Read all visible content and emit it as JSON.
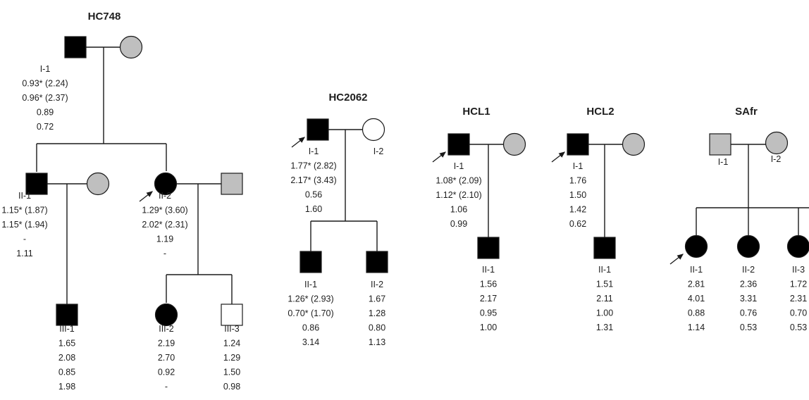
{
  "colors": {
    "affected": "#000000",
    "unknown": "#bfbfbf",
    "unaffected": "#ffffff",
    "line": "#1a1a1a"
  },
  "symbol_legend": {
    "square": "male",
    "circle": "female",
    "filled-black": "affected",
    "filled-grey": "unknown status",
    "open": "unaffected",
    "arrow": "proband"
  },
  "pedigrees": [
    {
      "id": "HC748",
      "title": "HC748",
      "members": [
        {
          "id": "I-1",
          "label": "I-1",
          "sex": "male",
          "status": "affected",
          "values": [
            "0.93* (2.24)",
            "0.96* (2.37)",
            "0.89",
            "0.72"
          ]
        },
        {
          "id": "I-2",
          "label": "",
          "sex": "female",
          "status": "unknown",
          "values": []
        },
        {
          "id": "II-1",
          "label": "II-1",
          "sex": "male",
          "status": "affected",
          "values": [
            "1.15* (1.87)",
            "1.15* (1.94)",
            "-",
            "1.11"
          ]
        },
        {
          "id": "II-1s",
          "label": "",
          "sex": "female",
          "status": "unknown",
          "values": []
        },
        {
          "id": "II-2",
          "label": "II-2",
          "sex": "female",
          "status": "affected",
          "proband": true,
          "values": [
            "1.29* (3.60)",
            "2.02* (2.31)",
            "1.19",
            "-"
          ]
        },
        {
          "id": "II-2s",
          "label": "",
          "sex": "male",
          "status": "unknown",
          "values": []
        },
        {
          "id": "III-1",
          "label": "III-1",
          "sex": "male",
          "status": "affected",
          "values": [
            "1.65",
            "2.08",
            "0.85",
            "1.98"
          ]
        },
        {
          "id": "III-2",
          "label": "III-2",
          "sex": "female",
          "status": "affected",
          "values": [
            "2.19",
            "2.70",
            "0.92",
            "-"
          ]
        },
        {
          "id": "III-3",
          "label": "III-3",
          "sex": "male",
          "status": "unaffected",
          "values": [
            "1.24",
            "1.29",
            "1.50",
            "0.98"
          ]
        }
      ]
    },
    {
      "id": "HC2062",
      "title": "HC2062",
      "members": [
        {
          "id": "I-1",
          "label": "I-1",
          "sex": "male",
          "status": "affected",
          "proband": true,
          "values": [
            "1.77* (2.82)",
            "2.17* (3.43)",
            "0.56",
            "1.60"
          ]
        },
        {
          "id": "I-2",
          "label": "I-2",
          "sex": "female",
          "status": "unaffected",
          "values": []
        },
        {
          "id": "II-1",
          "label": "II-1",
          "sex": "male",
          "status": "affected",
          "values": [
            "1.26* (2.93)",
            "0.70* (1.70)",
            "0.86",
            "3.14"
          ]
        },
        {
          "id": "II-2",
          "label": "II-2",
          "sex": "male",
          "status": "affected",
          "values": [
            "1.67",
            "1.28",
            "0.80",
            "1.13"
          ]
        }
      ]
    },
    {
      "id": "HCL1",
      "title": "HCL1",
      "members": [
        {
          "id": "I-1",
          "label": "I-1",
          "sex": "male",
          "status": "affected",
          "proband": true,
          "values": [
            "1.08* (2.09)",
            "1.12* (2.10)",
            "1.06",
            "0.99"
          ]
        },
        {
          "id": "I-2",
          "label": "",
          "sex": "female",
          "status": "unknown",
          "values": []
        },
        {
          "id": "II-1",
          "label": "II-1",
          "sex": "male",
          "status": "affected",
          "values": [
            "1.56",
            "2.17",
            "0.95",
            "1.00"
          ]
        }
      ]
    },
    {
      "id": "HCL2",
      "title": "HCL2",
      "members": [
        {
          "id": "I-1",
          "label": "I-1",
          "sex": "male",
          "status": "affected",
          "proband": true,
          "values": [
            "1.76",
            "1.50",
            "1.42",
            "0.62"
          ]
        },
        {
          "id": "I-2",
          "label": "",
          "sex": "female",
          "status": "unknown",
          "values": []
        },
        {
          "id": "II-1",
          "label": "II-1",
          "sex": "male",
          "status": "affected",
          "values": [
            "1.51",
            "2.11",
            "1.00",
            "1.31"
          ]
        }
      ]
    },
    {
      "id": "SAfr",
      "title": "SAfr",
      "members": [
        {
          "id": "I-1",
          "label": "I-1",
          "sex": "male",
          "status": "unknown",
          "values": []
        },
        {
          "id": "I-2",
          "label": "I-2",
          "sex": "female",
          "status": "unknown",
          "values": []
        },
        {
          "id": "II-1",
          "label": "II-1",
          "sex": "female",
          "status": "affected",
          "proband": true,
          "values": [
            "2.81",
            "4.01",
            "0.88",
            "1.14"
          ]
        },
        {
          "id": "II-2",
          "label": "II-2",
          "sex": "female",
          "status": "affected",
          "values": [
            "2.36",
            "3.31",
            "0.76",
            "0.53"
          ]
        },
        {
          "id": "II-3",
          "label": "II-3",
          "sex": "female",
          "status": "affected",
          "values": [
            "1.72",
            "2.31",
            "0.70",
            "0.53"
          ]
        }
      ]
    }
  ]
}
